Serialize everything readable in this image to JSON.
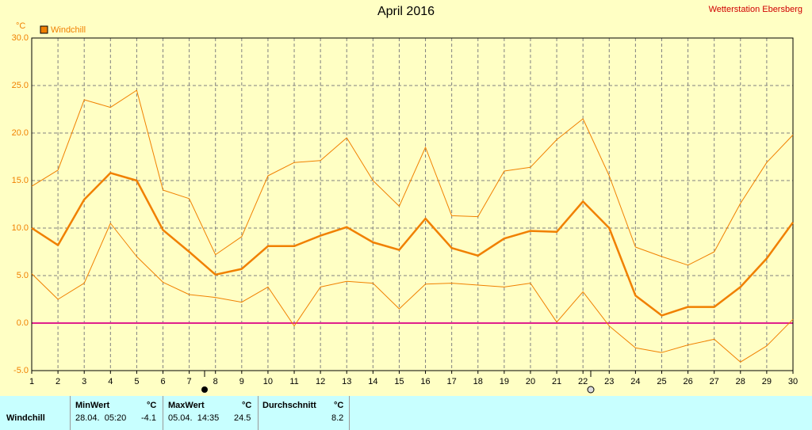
{
  "chart_data": {
    "type": "line",
    "title": "April 2016",
    "subtitle": "Wetterstation Ebersberg",
    "y_label": "°C",
    "x": [
      1,
      2,
      3,
      4,
      5,
      6,
      7,
      8,
      9,
      10,
      11,
      12,
      13,
      14,
      15,
      16,
      17,
      18,
      19,
      20,
      21,
      22,
      23,
      24,
      25,
      26,
      27,
      28,
      29,
      30
    ],
    "xlim": [
      1,
      30
    ],
    "xticks": [
      1,
      2,
      3,
      4,
      5,
      6,
      7,
      8,
      9,
      10,
      11,
      12,
      13,
      14,
      15,
      16,
      17,
      18,
      19,
      20,
      21,
      22,
      23,
      24,
      25,
      26,
      27,
      28,
      29,
      30
    ],
    "ylim": [
      -5,
      30
    ],
    "yticks": [
      {
        "value": -5,
        "label": "-5.0"
      },
      {
        "value": 0,
        "label": "0.0"
      },
      {
        "value": 5,
        "label": "5.0"
      },
      {
        "value": 10,
        "label": "10.0"
      },
      {
        "value": 15,
        "label": "15.0"
      },
      {
        "value": 20,
        "label": "20.0"
      },
      {
        "value": 25,
        "label": "25.0"
      },
      {
        "value": 30,
        "label": "30.0"
      }
    ],
    "grid": true,
    "zero_line_color": "#e0208c",
    "series": [
      {
        "name": "Windchill",
        "color": "#f08000",
        "line_width": 2.5,
        "values": [
          10.0,
          8.2,
          13.0,
          15.8,
          15.0,
          9.8,
          7.5,
          5.1,
          5.7,
          8.1,
          8.1,
          9.2,
          10.1,
          8.5,
          7.7,
          11.0,
          7.9,
          7.1,
          8.9,
          9.7,
          9.6,
          12.8,
          10.0,
          2.9,
          0.8,
          1.7,
          1.7,
          3.8,
          6.8,
          10.6
        ]
      },
      {
        "color": "#f08000",
        "line_width": 1,
        "values": [
          14.4,
          16.1,
          23.5,
          22.7,
          24.5,
          14.0,
          13.1,
          7.2,
          9.1,
          15.5,
          16.9,
          17.1,
          19.5,
          15.0,
          12.3,
          18.5,
          11.3,
          11.2,
          16.0,
          16.4,
          19.3,
          21.5,
          15.5,
          8.0,
          7.0,
          6.1,
          7.5,
          12.6,
          16.9,
          19.8
        ]
      },
      {
        "color": "#f08000",
        "line_width": 1,
        "values": [
          5.2,
          2.5,
          4.2,
          10.5,
          7.0,
          4.3,
          3.0,
          2.7,
          2.2,
          3.8,
          -0.3,
          3.8,
          4.4,
          4.2,
          1.5,
          4.1,
          4.2,
          4.0,
          3.8,
          4.2,
          0.1,
          3.3,
          -0.3,
          -2.6,
          -3.1,
          -2.3,
          -1.7,
          -4.1,
          -2.4,
          0.4
        ]
      }
    ]
  },
  "table": {
    "headers": [
      "MinWert",
      "°C",
      "MaxWert",
      "°C",
      "Durchschnitt",
      "°C"
    ],
    "rows": [
      [
        "Windchill",
        "28.04.  05:20",
        "-4.1",
        "05.04.  14:35",
        "24.5",
        "8.2"
      ]
    ]
  }
}
